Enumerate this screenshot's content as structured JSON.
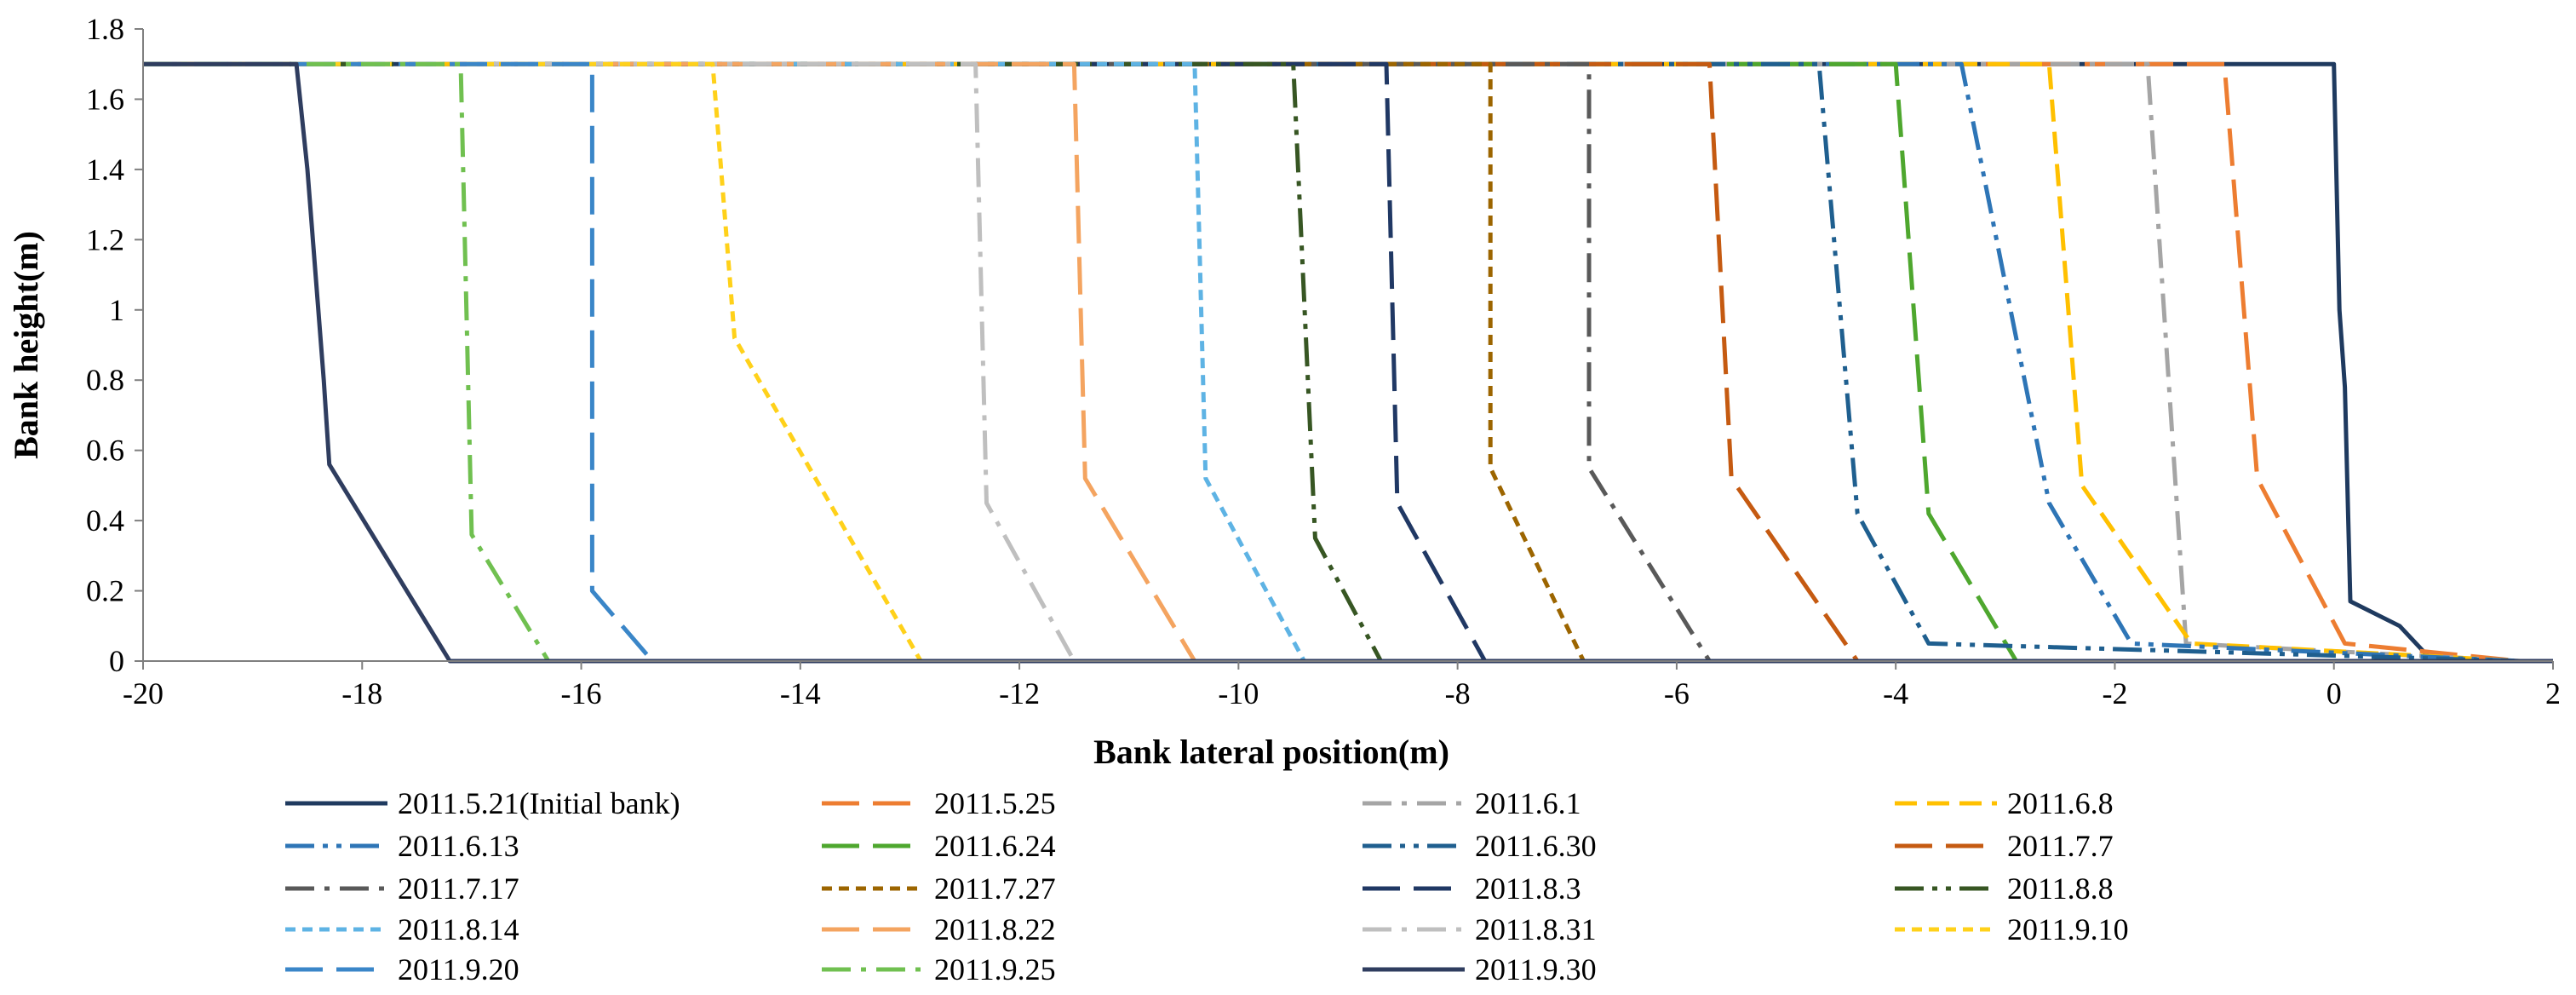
{
  "chart_data": {
    "type": "line",
    "title": "",
    "xlabel": "Bank lateral position(m)",
    "ylabel": "Bank height(m)",
    "xlim": [
      -20,
      2
    ],
    "ylim": [
      0,
      1.8
    ],
    "xticks": [
      -20,
      -18,
      -16,
      -14,
      -12,
      -10,
      -8,
      -6,
      -4,
      -2,
      0,
      2
    ],
    "yticks": [
      0,
      0.2,
      0.4,
      0.6,
      0.8,
      1,
      1.2,
      1.4,
      1.6,
      1.8
    ],
    "xtick_labels": [
      "-20",
      "-18",
      "-16",
      "-14",
      "-12",
      "-10",
      "-8",
      "-6",
      "-4",
      "-2",
      "0",
      "2"
    ],
    "ytick_labels": [
      "0",
      "0.2",
      "0.4",
      "0.6",
      "0.8",
      "1",
      "1.2",
      "1.4",
      "1.6",
      "1.8"
    ],
    "grid": false,
    "legend_position": "bottom",
    "series": [
      {
        "name": "2011.5.21(Initial bank)",
        "color": "#1f3a5f",
        "dash": "solid",
        "points": [
          [
            -20,
            1.7
          ],
          [
            0,
            1.7
          ],
          [
            0.05,
            1.0
          ],
          [
            0.1,
            0.78
          ],
          [
            0.15,
            0.17
          ],
          [
            0.6,
            0.1
          ],
          [
            0.9,
            0.0
          ],
          [
            2,
            0.0
          ]
        ]
      },
      {
        "name": "2011.5.25",
        "color": "#ed7d31",
        "dash": "long",
        "points": [
          [
            -20,
            1.7
          ],
          [
            -1.0,
            1.7
          ],
          [
            -0.7,
            0.52
          ],
          [
            0.1,
            0.05
          ],
          [
            1.7,
            0.0
          ]
        ]
      },
      {
        "name": "2011.6.1",
        "color": "#a5a5a5",
        "dash": "dashdot",
        "points": [
          [
            -20,
            1.7
          ],
          [
            -1.7,
            1.7
          ],
          [
            -1.35,
            0.05
          ],
          [
            1.7,
            0.0
          ]
        ]
      },
      {
        "name": "2011.6.8",
        "color": "#ffc000",
        "dash": "dash",
        "points": [
          [
            -20,
            1.7
          ],
          [
            -2.6,
            1.7
          ],
          [
            -2.3,
            0.5
          ],
          [
            -1.3,
            0.05
          ],
          [
            1.7,
            0.0
          ]
        ]
      },
      {
        "name": "2011.6.13",
        "color": "#2e75b6",
        "dash": "dashdotdot",
        "points": [
          [
            -20,
            1.7
          ],
          [
            -3.4,
            1.7
          ],
          [
            -2.6,
            0.45
          ],
          [
            -1.85,
            0.05
          ],
          [
            1.7,
            0.0
          ]
        ]
      },
      {
        "name": "2011.6.24",
        "color": "#4ea72e",
        "dash": "long",
        "points": [
          [
            -20,
            1.7
          ],
          [
            -4.0,
            1.7
          ],
          [
            -3.7,
            0.42
          ],
          [
            -2.9,
            0.0
          ],
          [
            1.7,
            0.0
          ]
        ]
      },
      {
        "name": "2011.6.30",
        "color": "#1f5f8f",
        "dash": "dashdotdot",
        "points": [
          [
            -20,
            1.7
          ],
          [
            -4.7,
            1.7
          ],
          [
            -4.35,
            0.42
          ],
          [
            -3.7,
            0.05
          ],
          [
            1.7,
            0.0
          ]
        ]
      },
      {
        "name": "2011.7.7",
        "color": "#c55a11",
        "dash": "long",
        "points": [
          [
            -20,
            1.7
          ],
          [
            -5.7,
            1.7
          ],
          [
            -5.5,
            0.52
          ],
          [
            -4.35,
            0.0
          ],
          [
            1.7,
            0.0
          ]
        ]
      },
      {
        "name": "2011.7.17",
        "color": "#595959",
        "dash": "dashdot",
        "points": [
          [
            -20,
            1.7
          ],
          [
            -6.8,
            1.7
          ],
          [
            -6.8,
            0.55
          ],
          [
            -5.7,
            0.0
          ],
          [
            1.7,
            0.0
          ]
        ]
      },
      {
        "name": "2011.7.27",
        "color": "#9c6500",
        "dash": "short",
        "points": [
          [
            -20,
            1.7
          ],
          [
            -7.7,
            1.7
          ],
          [
            -7.7,
            0.55
          ],
          [
            -6.85,
            0.0
          ],
          [
            1.7,
            0.0
          ]
        ]
      },
      {
        "name": "2011.8.3",
        "color": "#203864",
        "dash": "long",
        "points": [
          [
            -20,
            1.7
          ],
          [
            -8.65,
            1.7
          ],
          [
            -8.55,
            0.45
          ],
          [
            -7.75,
            0.0
          ],
          [
            1.7,
            0.0
          ]
        ]
      },
      {
        "name": "2011.8.8",
        "color": "#375623",
        "dash": "dashdotdot",
        "points": [
          [
            -20,
            1.7
          ],
          [
            -9.5,
            1.7
          ],
          [
            -9.3,
            0.35
          ],
          [
            -8.7,
            0.0
          ],
          [
            1.7,
            0.0
          ]
        ]
      },
      {
        "name": "2011.8.14",
        "color": "#5eb3e4",
        "dash": "short",
        "points": [
          [
            -20,
            1.7
          ],
          [
            -10.4,
            1.7
          ],
          [
            -10.3,
            0.52
          ],
          [
            -9.4,
            0.0
          ],
          [
            1.7,
            0.0
          ]
        ]
      },
      {
        "name": "2011.8.22",
        "color": "#f4a460",
        "dash": "long",
        "points": [
          [
            -20,
            1.7
          ],
          [
            -11.5,
            1.7
          ],
          [
            -11.4,
            0.52
          ],
          [
            -10.4,
            0.0
          ],
          [
            1.7,
            0.0
          ]
        ]
      },
      {
        "name": "2011.8.31",
        "color": "#bfbfbf",
        "dash": "dashdot",
        "points": [
          [
            -20,
            1.7
          ],
          [
            -12.4,
            1.7
          ],
          [
            -12.3,
            0.45
          ],
          [
            -11.5,
            0.0
          ],
          [
            1.7,
            0.0
          ]
        ]
      },
      {
        "name": "2011.9.10",
        "color": "#ffd11a",
        "dash": "short",
        "points": [
          [
            -20,
            1.7
          ],
          [
            -14.8,
            1.7
          ],
          [
            -14.6,
            0.92
          ],
          [
            -12.9,
            0.0
          ],
          [
            1.7,
            0.0
          ]
        ]
      },
      {
        "name": "2011.9.20",
        "color": "#3a86c8",
        "dash": "long",
        "points": [
          [
            -20,
            1.7
          ],
          [
            -15.9,
            1.7
          ],
          [
            -15.9,
            0.2
          ],
          [
            -15.35,
            0.0
          ],
          [
            1.7,
            0.0
          ]
        ]
      },
      {
        "name": "2011.9.25",
        "color": "#70c050",
        "dash": "dashdot",
        "points": [
          [
            -20,
            1.7
          ],
          [
            -17.1,
            1.7
          ],
          [
            -17.0,
            0.36
          ],
          [
            -16.3,
            0.0
          ],
          [
            1.7,
            0.0
          ]
        ]
      },
      {
        "name": "2011.9.30",
        "color": "#2f3d5f",
        "dash": "solid",
        "points": [
          [
            -20,
            1.7
          ],
          [
            -18.6,
            1.7
          ],
          [
            -18.5,
            1.4
          ],
          [
            -18.35,
            0.8
          ],
          [
            -18.3,
            0.56
          ],
          [
            -17.2,
            0.0
          ],
          [
            2,
            0.0
          ]
        ]
      }
    ]
  }
}
